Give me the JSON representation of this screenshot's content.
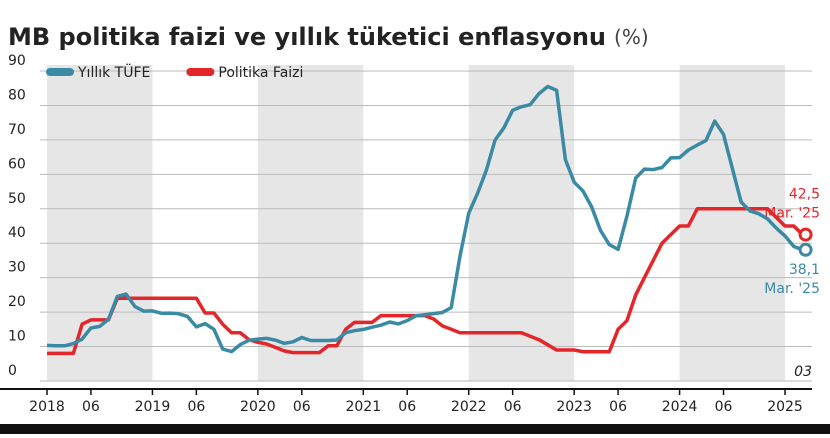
{
  "chart_data": {
    "type": "line",
    "title": "MB politika faizi ve yıllık tüketici enflasyonu",
    "unit": "(%)",
    "note": "03",
    "x": [
      "2018-01",
      "2018-02",
      "2018-03",
      "2018-04",
      "2018-05",
      "2018-06",
      "2018-07",
      "2018-08",
      "2018-09",
      "2018-10",
      "2018-11",
      "2018-12",
      "2019-01",
      "2019-02",
      "2019-03",
      "2019-04",
      "2019-05",
      "2019-06",
      "2019-07",
      "2019-08",
      "2019-09",
      "2019-10",
      "2019-11",
      "2019-12",
      "2020-01",
      "2020-02",
      "2020-03",
      "2020-04",
      "2020-05",
      "2020-06",
      "2020-07",
      "2020-08",
      "2020-09",
      "2020-10",
      "2020-11",
      "2020-12",
      "2021-01",
      "2021-02",
      "2021-03",
      "2021-04",
      "2021-05",
      "2021-06",
      "2021-07",
      "2021-08",
      "2021-09",
      "2021-10",
      "2021-11",
      "2021-12",
      "2022-01",
      "2022-02",
      "2022-03",
      "2022-04",
      "2022-05",
      "2022-06",
      "2022-07",
      "2022-08",
      "2022-09",
      "2022-10",
      "2022-11",
      "2022-12",
      "2023-01",
      "2023-02",
      "2023-03",
      "2023-04",
      "2023-05",
      "2023-06",
      "2023-07",
      "2023-08",
      "2023-09",
      "2023-10",
      "2023-11",
      "2023-12",
      "2024-01",
      "2024-02",
      "2024-03",
      "2024-04",
      "2024-05",
      "2024-06",
      "2024-07",
      "2024-08",
      "2024-09",
      "2024-10",
      "2024-11",
      "2024-12",
      "2025-01",
      "2025-02",
      "2025-03"
    ],
    "series": [
      {
        "name": "Yıllık TÜFE",
        "color": "#3b8aa5",
        "values": [
          10.35,
          10.26,
          10.23,
          10.85,
          12.15,
          15.39,
          15.85,
          17.9,
          24.52,
          25.24,
          21.62,
          20.3,
          20.35,
          19.67,
          19.71,
          19.5,
          18.71,
          15.72,
          16.65,
          15.01,
          9.26,
          8.55,
          10.56,
          11.84,
          12.15,
          12.37,
          11.86,
          10.94,
          11.39,
          12.62,
          11.76,
          11.77,
          11.75,
          11.89,
          14.03,
          14.6,
          14.97,
          15.61,
          16.19,
          17.14,
          16.59,
          17.53,
          18.95,
          19.25,
          19.58,
          19.89,
          21.31,
          36.08,
          48.69,
          54.44,
          61.14,
          69.97,
          73.5,
          78.62,
          79.6,
          80.21,
          83.45,
          85.51,
          84.39,
          64.27,
          57.68,
          55.18,
          50.51,
          43.68,
          39.59,
          38.21,
          47.83,
          58.94,
          61.53,
          61.36,
          61.98,
          64.77,
          64.86,
          67.07,
          68.5,
          69.8,
          75.45,
          71.6,
          61.78,
          51.97,
          49.38,
          48.58,
          47.09,
          44.38,
          42.12,
          39.05,
          38.1
        ],
        "last_value_label": "38,1",
        "last_date_label": "Mar. '25"
      },
      {
        "name": "Politika Faizi",
        "color": "#e3262a",
        "values": [
          8,
          8,
          8,
          8,
          16.5,
          17.75,
          17.75,
          17.75,
          24,
          24,
          24,
          24,
          24,
          24,
          24,
          24,
          24,
          24,
          19.75,
          19.75,
          16.5,
          14,
          14,
          12,
          11.25,
          10.75,
          9.75,
          8.75,
          8.25,
          8.25,
          8.25,
          8.25,
          10.25,
          10.25,
          15,
          17,
          17,
          17,
          19,
          19,
          19,
          19,
          19,
          19,
          18,
          16,
          15,
          14,
          14,
          14,
          14,
          14,
          14,
          14,
          14,
          13,
          12,
          10.5,
          9,
          9,
          9,
          8.5,
          8.5,
          8.5,
          8.5,
          15,
          17.5,
          25,
          30,
          35,
          40,
          42.5,
          45,
          45,
          50,
          50,
          50,
          50,
          50,
          50,
          50,
          50,
          50,
          47.5,
          45,
          45,
          42.5
        ],
        "last_value_label": "42,5",
        "last_date_label": "Mar. '25"
      }
    ],
    "ylim": [
      0,
      90
    ],
    "yticks": [
      0,
      10,
      20,
      30,
      40,
      50,
      60,
      70,
      80,
      90
    ],
    "xticks": [
      {
        "value": "2018-01",
        "label": "2018"
      },
      {
        "value": "2018-06",
        "label": "06"
      },
      {
        "value": "2019-01",
        "label": "2019"
      },
      {
        "value": "2019-06",
        "label": "06"
      },
      {
        "value": "2020-01",
        "label": "2020"
      },
      {
        "value": "2020-06",
        "label": "06"
      },
      {
        "value": "2021-01",
        "label": "2021"
      },
      {
        "value": "2021-06",
        "label": "06"
      },
      {
        "value": "2022-01",
        "label": "2022"
      },
      {
        "value": "2022-06",
        "label": "06"
      },
      {
        "value": "2023-01",
        "label": "2023"
      },
      {
        "value": "2023-06",
        "label": "06"
      },
      {
        "value": "2024-01",
        "label": "2024"
      },
      {
        "value": "2024-06",
        "label": "06"
      },
      {
        "value": "2025-01",
        "label": "2025"
      }
    ],
    "grid": true
  }
}
